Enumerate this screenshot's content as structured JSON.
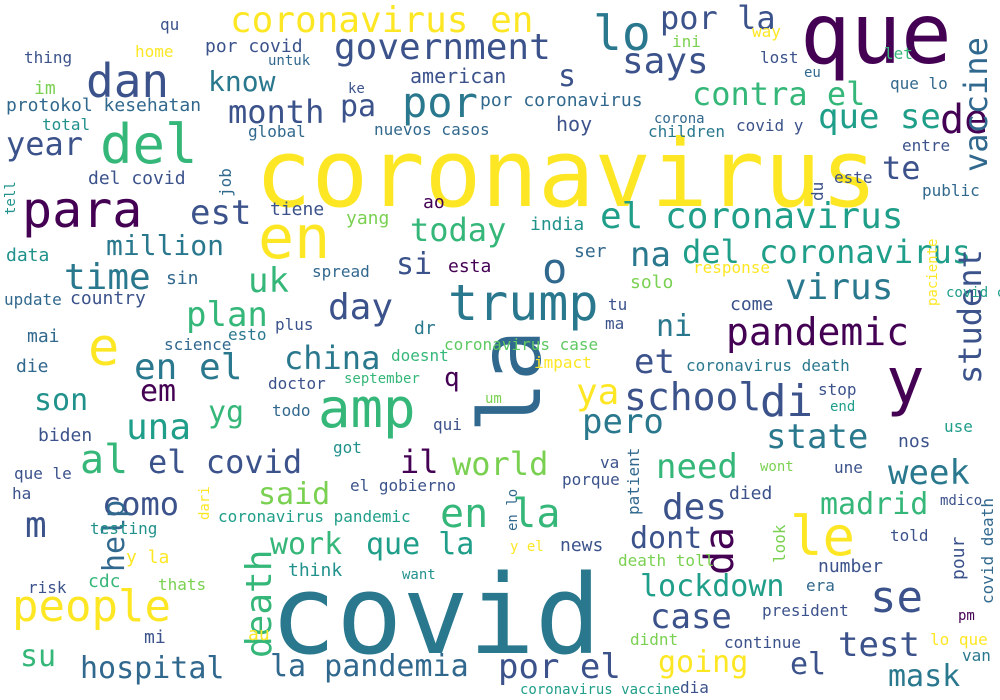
{
  "words": [
    "coronavirus",
    "covid",
    "que",
    "la",
    "en",
    "y",
    "amp",
    "para",
    "del",
    "trump",
    "dan",
    "lo",
    "people",
    "e",
    "le",
    "de",
    "government",
    "coronavirus en",
    "por la",
    "says",
    "vaccine",
    "s",
    "por",
    "contra el",
    "que se",
    "month",
    "know",
    "pa",
    "year",
    "te",
    "est",
    "el coronavirus",
    "today",
    "del coronavirus",
    "million",
    "time",
    "uk",
    "o",
    "na",
    "si",
    "virus",
    "plan",
    "pandemic",
    "day",
    "student",
    "en el",
    "china",
    "et",
    "ni",
    "school",
    "di",
    "em",
    "yg",
    "son",
    "q",
    "ya",
    "una",
    "pero",
    "state",
    "al",
    "el covid",
    "il",
    "world",
    "need",
    "week",
    "m",
    "como",
    "said",
    "des",
    "madrid",
    "help",
    "work",
    "que la",
    "dont",
    "en la",
    "da",
    "lockdown",
    "case",
    "death",
    "test",
    "se",
    "su",
    "hospital",
    "la pandemia",
    "por el",
    "el",
    "going",
    "mask",
    "qu",
    "thing",
    "home",
    "por covid",
    "untuk",
    "ini",
    "way",
    "lost",
    "let",
    "american",
    "eu",
    "que lo",
    "im",
    "ke",
    "protokol kesehatan",
    "total",
    "global",
    "nuevos casos",
    "por coronavirus",
    "hoy",
    "corona",
    "children",
    "covid y",
    "entre",
    "del covid",
    "job",
    "tell",
    "este",
    "du",
    "public",
    "ao",
    "tiene",
    "yang",
    "india",
    "data",
    "ser",
    "response",
    "esta",
    "spread",
    "sin",
    "update",
    "country",
    "solo",
    "tu",
    "ma",
    "come",
    "covid case",
    "science",
    "plus",
    "esto",
    "mai",
    "dr",
    "coronavirus case",
    "paciente",
    "die",
    "doesnt",
    "impact",
    "coronavirus death",
    "doctor",
    "september",
    "stop",
    "todo",
    "end",
    "biden",
    "qui",
    "um",
    "use",
    "got",
    "nos",
    "que le",
    "va",
    "wont",
    "une",
    "ha",
    "el gobierno",
    "porque",
    "died",
    "mdico",
    "dari",
    "testing",
    "coronavirus pandemic",
    "patient",
    "en lo",
    "told",
    "covid death",
    "y la",
    "think",
    "news",
    "look",
    "number",
    "pour",
    "cdc",
    "y el",
    "death toll",
    "risk",
    "thats",
    "want",
    "era",
    "president",
    "pm",
    "mi",
    "au",
    "didnt",
    "continue",
    "lo que",
    "van",
    "coronavirus vaccine",
    "dia"
  ]
}
